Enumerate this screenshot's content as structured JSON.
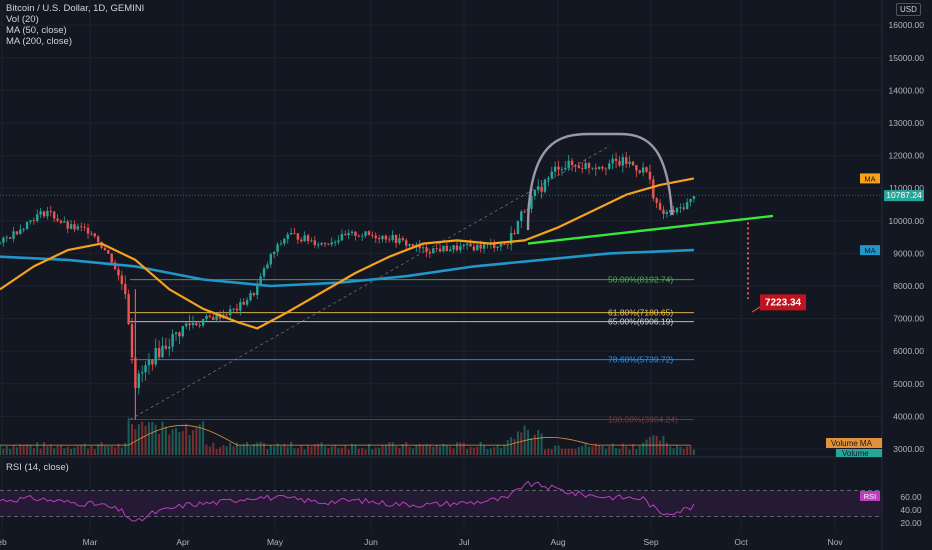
{
  "header": {
    "title": "Bitcoin / U.S. Dollar, 1D, GEMINI",
    "indicators": [
      "Vol (20)",
      "MA (50, close)",
      "MA (200, close)"
    ],
    "currency": "USD"
  },
  "rsi_label": "RSI (14, close)",
  "colors": {
    "background": "#131722",
    "up": "#26a69a",
    "down": "#ef5350",
    "ma50": "#f7a21b",
    "ma200": "#2196c9",
    "support": "#39e639",
    "dome": "#9b97a6",
    "rsi": "#b93fbf"
  },
  "chart_data": {
    "type": "candlestick",
    "y_ticks": [
      "16000.00",
      "15000.00",
      "14000.00",
      "13000.00",
      "12000.00",
      "11000.00",
      "10000.00",
      "9000.00",
      "8000.00",
      "7000.00",
      "6000.00",
      "5000.00",
      "4000.00",
      "3000.00"
    ],
    "ylim": [
      2900,
      16400
    ],
    "x_ticks": [
      "Feb",
      "Mar",
      "Apr",
      "May",
      "Jun",
      "Jul",
      "Aug",
      "Sep",
      "Oct",
      "Nov"
    ],
    "price_anchors": [
      {
        "d": 0,
        "p": 9300
      },
      {
        "d": 10,
        "p": 10100
      },
      {
        "d": 14,
        "p": 10300
      },
      {
        "d": 20,
        "p": 9800
      },
      {
        "d": 27,
        "p": 9700
      },
      {
        "d": 33,
        "p": 8800
      },
      {
        "d": 35,
        "p": 8300
      },
      {
        "d": 37,
        "p": 7900
      },
      {
        "d": 40,
        "p": 5000
      },
      {
        "d": 45,
        "p": 5800
      },
      {
        "d": 55,
        "p": 6800
      },
      {
        "d": 65,
        "p": 7100
      },
      {
        "d": 70,
        "p": 7300
      },
      {
        "d": 75,
        "p": 7800
      },
      {
        "d": 80,
        "p": 8900
      },
      {
        "d": 85,
        "p": 9600
      },
      {
        "d": 95,
        "p": 9300
      },
      {
        "d": 105,
        "p": 9600
      },
      {
        "d": 115,
        "p": 9500
      },
      {
        "d": 125,
        "p": 9100
      },
      {
        "d": 140,
        "p": 9200
      },
      {
        "d": 150,
        "p": 9300
      },
      {
        "d": 155,
        "p": 10400
      },
      {
        "d": 165,
        "p": 11700
      },
      {
        "d": 175,
        "p": 11700
      },
      {
        "d": 185,
        "p": 11800
      },
      {
        "d": 191,
        "p": 11500
      },
      {
        "d": 195,
        "p": 10200
      },
      {
        "d": 200,
        "p": 10300
      },
      {
        "d": 205,
        "p": 10700
      }
    ],
    "ma50": [
      {
        "d": 0,
        "p": 7900
      },
      {
        "d": 10,
        "p": 8600
      },
      {
        "d": 20,
        "p": 9100
      },
      {
        "d": 30,
        "p": 9300
      },
      {
        "d": 40,
        "p": 8800
      },
      {
        "d": 50,
        "p": 7900
      },
      {
        "d": 60,
        "p": 7300
      },
      {
        "d": 70,
        "p": 6900
      },
      {
        "d": 76,
        "p": 6700
      },
      {
        "d": 85,
        "p": 7200
      },
      {
        "d": 95,
        "p": 7800
      },
      {
        "d": 105,
        "p": 8400
      },
      {
        "d": 115,
        "p": 8900
      },
      {
        "d": 125,
        "p": 9300
      },
      {
        "d": 135,
        "p": 9400
      },
      {
        "d": 145,
        "p": 9300
      },
      {
        "d": 155,
        "p": 9400
      },
      {
        "d": 165,
        "p": 9800
      },
      {
        "d": 175,
        "p": 10300
      },
      {
        "d": 185,
        "p": 10800
      },
      {
        "d": 195,
        "p": 11100
      },
      {
        "d": 205,
        "p": 11300
      }
    ],
    "ma200": [
      {
        "d": 0,
        "p": 8900
      },
      {
        "d": 20,
        "p": 8800
      },
      {
        "d": 40,
        "p": 8600
      },
      {
        "d": 60,
        "p": 8200
      },
      {
        "d": 80,
        "p": 8000
      },
      {
        "d": 100,
        "p": 8100
      },
      {
        "d": 120,
        "p": 8300
      },
      {
        "d": 140,
        "p": 8600
      },
      {
        "d": 160,
        "p": 8800
      },
      {
        "d": 180,
        "p": 9000
      },
      {
        "d": 205,
        "p": 9100
      }
    ],
    "fib_levels": [
      {
        "label": "50.00%(8192.74)",
        "price": 8192.74,
        "color": "#4caf50"
      },
      {
        "label": "61.80%(7180.65)",
        "price": 7180.65,
        "color": "#f0c94b"
      },
      {
        "label": "65.00%(6906.19)",
        "price": 6906.19,
        "color": "#d1d4dc"
      },
      {
        "label": "78.60%(5739.72)",
        "price": 5739.72,
        "color": "#2196f3"
      },
      {
        "label": "100.00%(3904.24)",
        "price": 3904.24,
        "color": "#7a3b3b"
      }
    ],
    "price_labels": [
      {
        "text": "MA",
        "price": 11300,
        "color": "#f7a21b"
      },
      {
        "text": "10787.24",
        "price": 10787.24,
        "color": "#26a69a"
      },
      {
        "text": "MA",
        "price": 9100,
        "color": "#2196c9"
      }
    ],
    "target_label": "7223.34",
    "target_price": 7223.34,
    "volume_tags": [
      "Volume MA",
      "Volume"
    ],
    "rsi_ticks": [
      "60.00",
      "40.00",
      "20.00"
    ],
    "rsi_tag": "RSI",
    "rsi_anchors": [
      {
        "d": 0,
        "r": 55
      },
      {
        "d": 10,
        "r": 58
      },
      {
        "d": 20,
        "r": 52
      },
      {
        "d": 30,
        "r": 48
      },
      {
        "d": 36,
        "r": 38
      },
      {
        "d": 40,
        "r": 20
      },
      {
        "d": 45,
        "r": 35
      },
      {
        "d": 55,
        "r": 48
      },
      {
        "d": 65,
        "r": 52
      },
      {
        "d": 75,
        "r": 60
      },
      {
        "d": 85,
        "r": 58
      },
      {
        "d": 95,
        "r": 52
      },
      {
        "d": 105,
        "r": 55
      },
      {
        "d": 115,
        "r": 50
      },
      {
        "d": 125,
        "r": 48
      },
      {
        "d": 140,
        "r": 52
      },
      {
        "d": 150,
        "r": 58
      },
      {
        "d": 155,
        "r": 80
      },
      {
        "d": 160,
        "r": 78
      },
      {
        "d": 170,
        "r": 65
      },
      {
        "d": 180,
        "r": 60
      },
      {
        "d": 190,
        "r": 58
      },
      {
        "d": 195,
        "r": 35
      },
      {
        "d": 200,
        "r": 38
      },
      {
        "d": 205,
        "r": 45
      }
    ]
  }
}
